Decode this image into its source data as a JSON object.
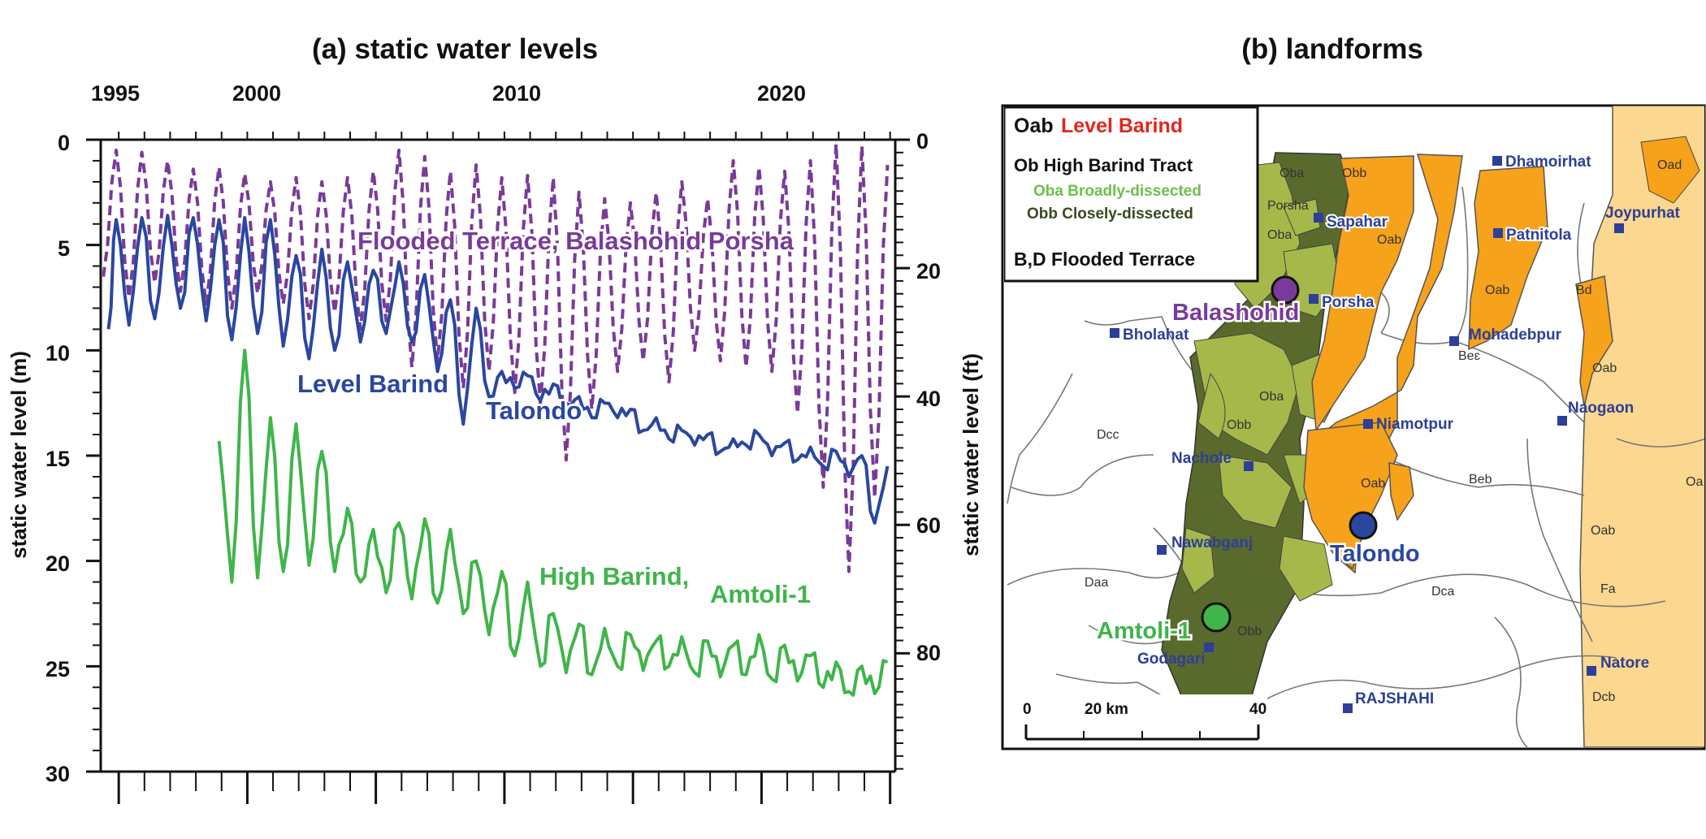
{
  "chart_data": [
    {
      "type": "line",
      "title": "(a) static water levels",
      "xlabel": "",
      "ylabel": "static water level (m)",
      "ylabel_right": "static water level (ft)",
      "xlim": [
        1994.3,
        2025.2
      ],
      "ylim": [
        30,
        0
      ],
      "y_ticks": [
        "0",
        "5",
        "10",
        "15",
        "20",
        "25",
        "30"
      ],
      "y_right_ticks": [
        "0",
        "20",
        "40",
        "60",
        "80"
      ],
      "x_ticks": [
        "1995",
        "2000",
        "2010",
        "2020"
      ],
      "annotations": [
        {
          "text": "Flooded Terrace, Balashohid Porsha",
          "color": "#7a3a9a"
        },
        {
          "text": "Level Barind",
          "color": "#2a47a0"
        },
        {
          "text": "Talondo",
          "color": "#2a47a0"
        },
        {
          "text": "High Barind,",
          "color": "#3fb54a"
        },
        {
          "text": "Amtoli-1",
          "color": "#3fb54a"
        }
      ],
      "series": [
        {
          "name": "Flooded Terrace, Balashohid Porsha",
          "color": "#7a3a9a",
          "style": "dashed",
          "seasonal": true,
          "minima": [
            [
              1994.4,
              6.5
            ],
            [
              1995.4,
              7.5
            ],
            [
              1996.4,
              6.8
            ],
            [
              1997.4,
              7.2
            ],
            [
              1998.4,
              7.8
            ],
            [
              1999.4,
              8.0
            ],
            [
              2000.4,
              7.3
            ],
            [
              2001.4,
              7.8
            ],
            [
              2002.4,
              8.5
            ],
            [
              2003.4,
              8.2
            ],
            [
              2004.4,
              9.0
            ],
            [
              2005.4,
              8.6
            ],
            [
              2006.4,
              10.8
            ],
            [
              2007.4,
              10.5
            ],
            [
              2008.4,
              11.8
            ],
            [
              2009.4,
              11.0
            ],
            [
              2010.4,
              12.0
            ],
            [
              2011.4,
              12.5
            ],
            [
              2012.4,
              15.2
            ],
            [
              2013.4,
              12.8
            ],
            [
              2014.4,
              11.0
            ],
            [
              2015.4,
              10.5
            ],
            [
              2016.4,
              11.5
            ],
            [
              2017.4,
              10.0
            ],
            [
              2018.4,
              10.5
            ],
            [
              2019.4,
              10.8
            ],
            [
              2020.4,
              11.0
            ],
            [
              2021.4,
              13.0
            ],
            [
              2022.4,
              16.5
            ],
            [
              2023.4,
              20.5
            ],
            [
              2024.4,
              17.0
            ]
          ],
          "maxima": [
            [
              1994.9,
              0.5
            ],
            [
              1995.9,
              0.6
            ],
            [
              1996.9,
              1.0
            ],
            [
              1997.9,
              1.4
            ],
            [
              1998.9,
              1.3
            ],
            [
              1999.9,
              1.6
            ],
            [
              2000.9,
              2.0
            ],
            [
              2001.9,
              1.8
            ],
            [
              2002.9,
              2.0
            ],
            [
              2003.9,
              1.8
            ],
            [
              2004.9,
              1.5
            ],
            [
              2005.9,
              0.5
            ],
            [
              2006.9,
              0.8
            ],
            [
              2007.9,
              1.5
            ],
            [
              2008.9,
              1.2
            ],
            [
              2009.9,
              1.8
            ],
            [
              2010.9,
              1.7
            ],
            [
              2011.9,
              1.8
            ],
            [
              2012.9,
              2.5
            ],
            [
              2013.9,
              2.8
            ],
            [
              2014.9,
              3.0
            ],
            [
              2015.9,
              2.5
            ],
            [
              2016.9,
              2.0
            ],
            [
              2017.9,
              2.8
            ],
            [
              2018.9,
              1.0
            ],
            [
              2019.9,
              1.3
            ],
            [
              2020.9,
              1.5
            ],
            [
              2021.9,
              1.0
            ],
            [
              2022.9,
              0.2
            ],
            [
              2023.9,
              0.3
            ],
            [
              2024.9,
              1.2
            ]
          ]
        },
        {
          "name": "Level Barind, Talondo",
          "color": "#2a47a0",
          "style": "solid",
          "seasonal": true,
          "minima": [
            [
              1994.6,
              9.0
            ],
            [
              1995.4,
              8.8
            ],
            [
              1996.4,
              8.5
            ],
            [
              1997.4,
              8.0
            ],
            [
              1998.4,
              8.6
            ],
            [
              1999.4,
              9.5
            ],
            [
              2000.4,
              9.2
            ],
            [
              2001.4,
              9.8
            ],
            [
              2002.4,
              10.4
            ],
            [
              2003.4,
              10.0
            ],
            [
              2004.4,
              9.6
            ],
            [
              2005.4,
              9.2
            ],
            [
              2006.4,
              9.6
            ],
            [
              2007.4,
              11.0
            ],
            [
              2008.4,
              13.5
            ],
            [
              2009.4,
              12.2
            ],
            [
              2010.4,
              11.8
            ],
            [
              2011.4,
              12.4
            ],
            [
              2012.4,
              12.5
            ],
            [
              2013.4,
              13.2
            ],
            [
              2014.4,
              13.2
            ],
            [
              2015.4,
              13.8
            ],
            [
              2016.4,
              14.2
            ],
            [
              2017.4,
              14.5
            ],
            [
              2018.4,
              14.8
            ],
            [
              2019.4,
              14.5
            ],
            [
              2020.4,
              15.0
            ],
            [
              2021.4,
              15.2
            ],
            [
              2022.4,
              15.5
            ],
            [
              2023.4,
              16.0
            ],
            [
              2024.4,
              18.2
            ]
          ],
          "maxima": [
            [
              1994.9,
              3.8
            ],
            [
              1995.9,
              3.7
            ],
            [
              1996.9,
              3.6
            ],
            [
              1997.9,
              3.7
            ],
            [
              1998.9,
              3.8
            ],
            [
              1999.9,
              3.7
            ],
            [
              2000.9,
              3.8
            ],
            [
              2001.9,
              5.5
            ],
            [
              2002.9,
              5.2
            ],
            [
              2003.9,
              5.8
            ],
            [
              2004.9,
              6.2
            ],
            [
              2005.9,
              5.8
            ],
            [
              2006.9,
              6.4
            ],
            [
              2007.9,
              7.6
            ],
            [
              2008.9,
              8.0
            ],
            [
              2009.9,
              11.0
            ],
            [
              2010.9,
              11.2
            ],
            [
              2011.9,
              11.6
            ],
            [
              2012.9,
              12.2
            ],
            [
              2013.9,
              12.5
            ],
            [
              2014.9,
              12.8
            ],
            [
              2015.9,
              13.2
            ],
            [
              2016.9,
              13.8
            ],
            [
              2017.9,
              14.0
            ],
            [
              2018.9,
              14.2
            ],
            [
              2019.9,
              14.0
            ],
            [
              2020.9,
              14.4
            ],
            [
              2021.9,
              14.6
            ],
            [
              2022.9,
              14.8
            ],
            [
              2023.9,
              15.0
            ],
            [
              2024.9,
              15.5
            ]
          ]
        },
        {
          "name": "High Barind, Amtoli-1",
          "color": "#3fb54a",
          "style": "solid",
          "seasonal": true,
          "minima": [
            [
              1999.4,
              21.0
            ],
            [
              2000.4,
              20.8
            ],
            [
              2001.4,
              20.5
            ],
            [
              2002.4,
              20.2
            ],
            [
              2003.4,
              20.5
            ],
            [
              2004.4,
              21.0
            ],
            [
              2005.4,
              21.5
            ],
            [
              2006.4,
              21.8
            ],
            [
              2007.4,
              22.0
            ],
            [
              2008.4,
              22.5
            ],
            [
              2009.4,
              23.5
            ],
            [
              2010.4,
              24.5
            ],
            [
              2011.4,
              25.0
            ],
            [
              2012.4,
              25.3
            ],
            [
              2013.4,
              25.4
            ],
            [
              2014.4,
              25.0
            ],
            [
              2015.4,
              25.2
            ],
            [
              2016.4,
              25.0
            ],
            [
              2017.4,
              25.3
            ],
            [
              2018.4,
              25.5
            ],
            [
              2019.4,
              25.4
            ],
            [
              2020.4,
              25.6
            ],
            [
              2021.4,
              25.7
            ],
            [
              2022.4,
              26.0
            ],
            [
              2023.4,
              26.2
            ],
            [
              2024.4,
              26.3
            ]
          ],
          "maxima": [
            [
              1998.9,
              14.3
            ],
            [
              1999.9,
              10.0
            ],
            [
              2000.9,
              13.2
            ],
            [
              2001.9,
              13.5
            ],
            [
              2002.9,
              14.8
            ],
            [
              2003.9,
              17.5
            ],
            [
              2004.9,
              18.5
            ],
            [
              2005.9,
              18.2
            ],
            [
              2006.9,
              18.0
            ],
            [
              2007.9,
              18.5
            ],
            [
              2008.9,
              20.0
            ],
            [
              2009.9,
              20.5
            ],
            [
              2010.9,
              21.0
            ],
            [
              2011.9,
              22.5
            ],
            [
              2012.9,
              23.0
            ],
            [
              2013.9,
              23.2
            ],
            [
              2014.9,
              23.5
            ],
            [
              2015.9,
              23.8
            ],
            [
              2016.9,
              23.6
            ],
            [
              2017.9,
              23.8
            ],
            [
              2018.9,
              24.0
            ],
            [
              2019.9,
              23.5
            ],
            [
              2020.9,
              24.0
            ],
            [
              2021.9,
              24.5
            ],
            [
              2022.9,
              24.8
            ],
            [
              2023.9,
              25.0
            ],
            [
              2024.9,
              24.8
            ]
          ]
        }
      ]
    }
  ],
  "map": {
    "title": "(b) landforms",
    "legend": {
      "oab_code": "Oab",
      "oab_name": "Level Barind",
      "ob_line": "Ob High Barind Tract",
      "oba_line": "Oba Broadly-dissected",
      "obb_line": "Obb Closely-dissected",
      "bd_line": "B,D Flooded Terrace"
    },
    "colors": {
      "oab": "#f7a21b",
      "oab_pale": "#fbd78f",
      "oba": "#a6b84a",
      "obb": "#5a6a2c",
      "flooded": "#ffffff",
      "red": "#e0261f",
      "site_balashohid": "#7a3a9a",
      "site_talondo": "#2a47a0",
      "site_amtoli": "#3fb54a",
      "town": "#2d3f96"
    },
    "towns": [
      "Dhamoirhat",
      "Sapahar",
      "Patnitola",
      "Joypurhat",
      "Porsha",
      "Bholahat",
      "Mohadebpur",
      "Niamotpur",
      "Naogaon",
      "Nachole",
      "Nawabganj",
      "Godagari",
      "RAJSHAHI",
      "Natore"
    ],
    "sites": [
      "Balashohid",
      "Talondo",
      "Amtoli-1"
    ],
    "unit_labels": [
      "Oba",
      "Obb",
      "Porsha",
      "Oba",
      "Oab",
      "Oad",
      "Bd",
      "Oab",
      "Beɛ",
      "Oab",
      "Dcc",
      "Oba",
      "Obb",
      "Oab",
      "Beb",
      "Oa",
      "Oab",
      "Daa",
      "Dca",
      "Fa",
      "Obb",
      "Dcb"
    ],
    "scale": {
      "labels": [
        "0",
        "20 km",
        "40"
      ]
    }
  }
}
